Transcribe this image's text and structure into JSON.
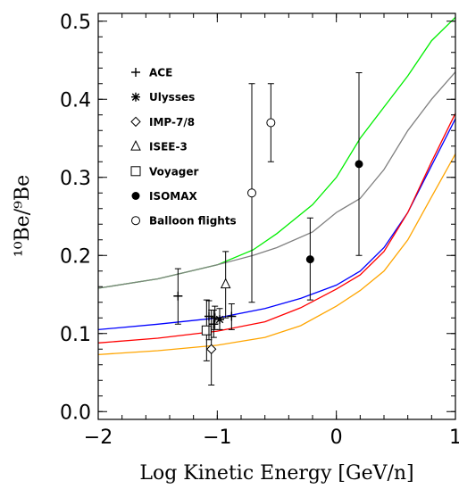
{
  "chart_data": {
    "type": "scatter",
    "title": "",
    "xlabel": "Log Kinetic Energy [GeV/n]",
    "ylabel": "¹⁰Be/⁹Be",
    "xlim": [
      -2,
      1
    ],
    "ylim": [
      -0.01,
      0.51
    ],
    "x_ticks": [
      -2,
      -1,
      0,
      1
    ],
    "x_tick_labels": [
      "−2",
      "−1",
      "0",
      "1"
    ],
    "y_ticks": [
      0.0,
      0.1,
      0.2,
      0.3,
      0.4,
      0.5
    ],
    "y_tick_labels": [
      "0.0",
      "0.1",
      "0.2",
      "0.3",
      "0.4",
      "0.5"
    ],
    "legend_position": "top-left",
    "series": [
      {
        "name": "ACE",
        "marker": "plus",
        "points": [
          {
            "x": -1.33,
            "y": 0.148,
            "lo": 0.112,
            "hi": 0.183
          },
          {
            "x": -1.02,
            "y": 0.12,
            "lo": 0.105,
            "hi": 0.135
          }
        ]
      },
      {
        "name": "Ulysses",
        "marker": "asterisk",
        "points": [
          {
            "x": -0.98,
            "y": 0.118,
            "lo": 0.105,
            "hi": 0.132
          }
        ]
      },
      {
        "name": "IMP-7/8",
        "marker": "diamond",
        "points": [
          {
            "x": -1.05,
            "y": 0.08,
            "lo": 0.034,
            "hi": 0.13
          }
        ]
      },
      {
        "name": "ISEE-3",
        "marker": "triangle",
        "points": [
          {
            "x": -0.93,
            "y": 0.163,
            "lo": 0.12,
            "hi": 0.205
          }
        ]
      },
      {
        "name": "Voyager",
        "marker": "square",
        "points": [
          {
            "x": -1.09,
            "y": 0.104,
            "lo": 0.065,
            "hi": 0.143
          }
        ]
      },
      {
        "name": "ISOMAX",
        "marker": "filled-circle",
        "points": [
          {
            "x": -0.22,
            "y": 0.195,
            "lo": 0.143,
            "hi": 0.248
          },
          {
            "x": 0.19,
            "y": 0.317,
            "lo": 0.2,
            "hi": 0.434
          }
        ]
      },
      {
        "name": "Balloon flights",
        "marker": "open-circle",
        "points": [
          {
            "x": -0.71,
            "y": 0.28,
            "lo": 0.14,
            "hi": 0.42
          },
          {
            "x": -0.55,
            "y": 0.37,
            "lo": 0.32,
            "hi": 0.42
          }
        ]
      }
    ],
    "extra_points": [
      {
        "marker": "plus",
        "x": -1.07,
        "y": 0.122,
        "lo": 0.092,
        "hi": 0.142
      },
      {
        "marker": "plus",
        "x": -1.03,
        "y": 0.112,
        "lo": 0.095,
        "hi": 0.13
      },
      {
        "marker": "plus",
        "x": -0.88,
        "y": 0.122,
        "lo": 0.105,
        "hi": 0.138
      }
    ],
    "model_curves": [
      {
        "color": "#00ee00",
        "points": [
          [
            -2,
            0.158
          ],
          [
            -1.5,
            0.17
          ],
          [
            -1.0,
            0.188
          ],
          [
            -0.7,
            0.207
          ],
          [
            -0.5,
            0.228
          ],
          [
            -0.2,
            0.265
          ],
          [
            0,
            0.3
          ],
          [
            0.2,
            0.35
          ],
          [
            0.4,
            0.39
          ],
          [
            0.6,
            0.43
          ],
          [
            0.8,
            0.475
          ],
          [
            1.0,
            0.505
          ]
        ]
      },
      {
        "color": "#808080",
        "points": [
          [
            -2,
            0.158
          ],
          [
            -1.5,
            0.17
          ],
          [
            -1.0,
            0.188
          ],
          [
            -0.7,
            0.2
          ],
          [
            -0.5,
            0.21
          ],
          [
            -0.2,
            0.23
          ],
          [
            0,
            0.255
          ],
          [
            0.2,
            0.273
          ],
          [
            0.4,
            0.31
          ],
          [
            0.6,
            0.36
          ],
          [
            0.8,
            0.4
          ],
          [
            1.0,
            0.435
          ]
        ]
      },
      {
        "color": "#0000ff",
        "points": [
          [
            -2,
            0.105
          ],
          [
            -1.5,
            0.112
          ],
          [
            -1.0,
            0.12
          ],
          [
            -0.6,
            0.132
          ],
          [
            -0.3,
            0.145
          ],
          [
            0,
            0.162
          ],
          [
            0.2,
            0.18
          ],
          [
            0.4,
            0.21
          ],
          [
            0.6,
            0.255
          ],
          [
            0.8,
            0.315
          ],
          [
            1.0,
            0.375
          ]
        ]
      },
      {
        "color": "#ff0000",
        "points": [
          [
            -2,
            0.088
          ],
          [
            -1.5,
            0.094
          ],
          [
            -1.0,
            0.103
          ],
          [
            -0.6,
            0.115
          ],
          [
            -0.3,
            0.133
          ],
          [
            0,
            0.157
          ],
          [
            0.2,
            0.175
          ],
          [
            0.4,
            0.205
          ],
          [
            0.6,
            0.255
          ],
          [
            0.8,
            0.32
          ],
          [
            1.0,
            0.382
          ]
        ]
      },
      {
        "color": "#ffa500",
        "points": [
          [
            -2,
            0.073
          ],
          [
            -1.5,
            0.078
          ],
          [
            -1.0,
            0.085
          ],
          [
            -0.6,
            0.095
          ],
          [
            -0.3,
            0.11
          ],
          [
            0,
            0.135
          ],
          [
            0.2,
            0.155
          ],
          [
            0.4,
            0.18
          ],
          [
            0.6,
            0.22
          ],
          [
            0.8,
            0.275
          ],
          [
            1.0,
            0.33
          ]
        ]
      }
    ]
  }
}
